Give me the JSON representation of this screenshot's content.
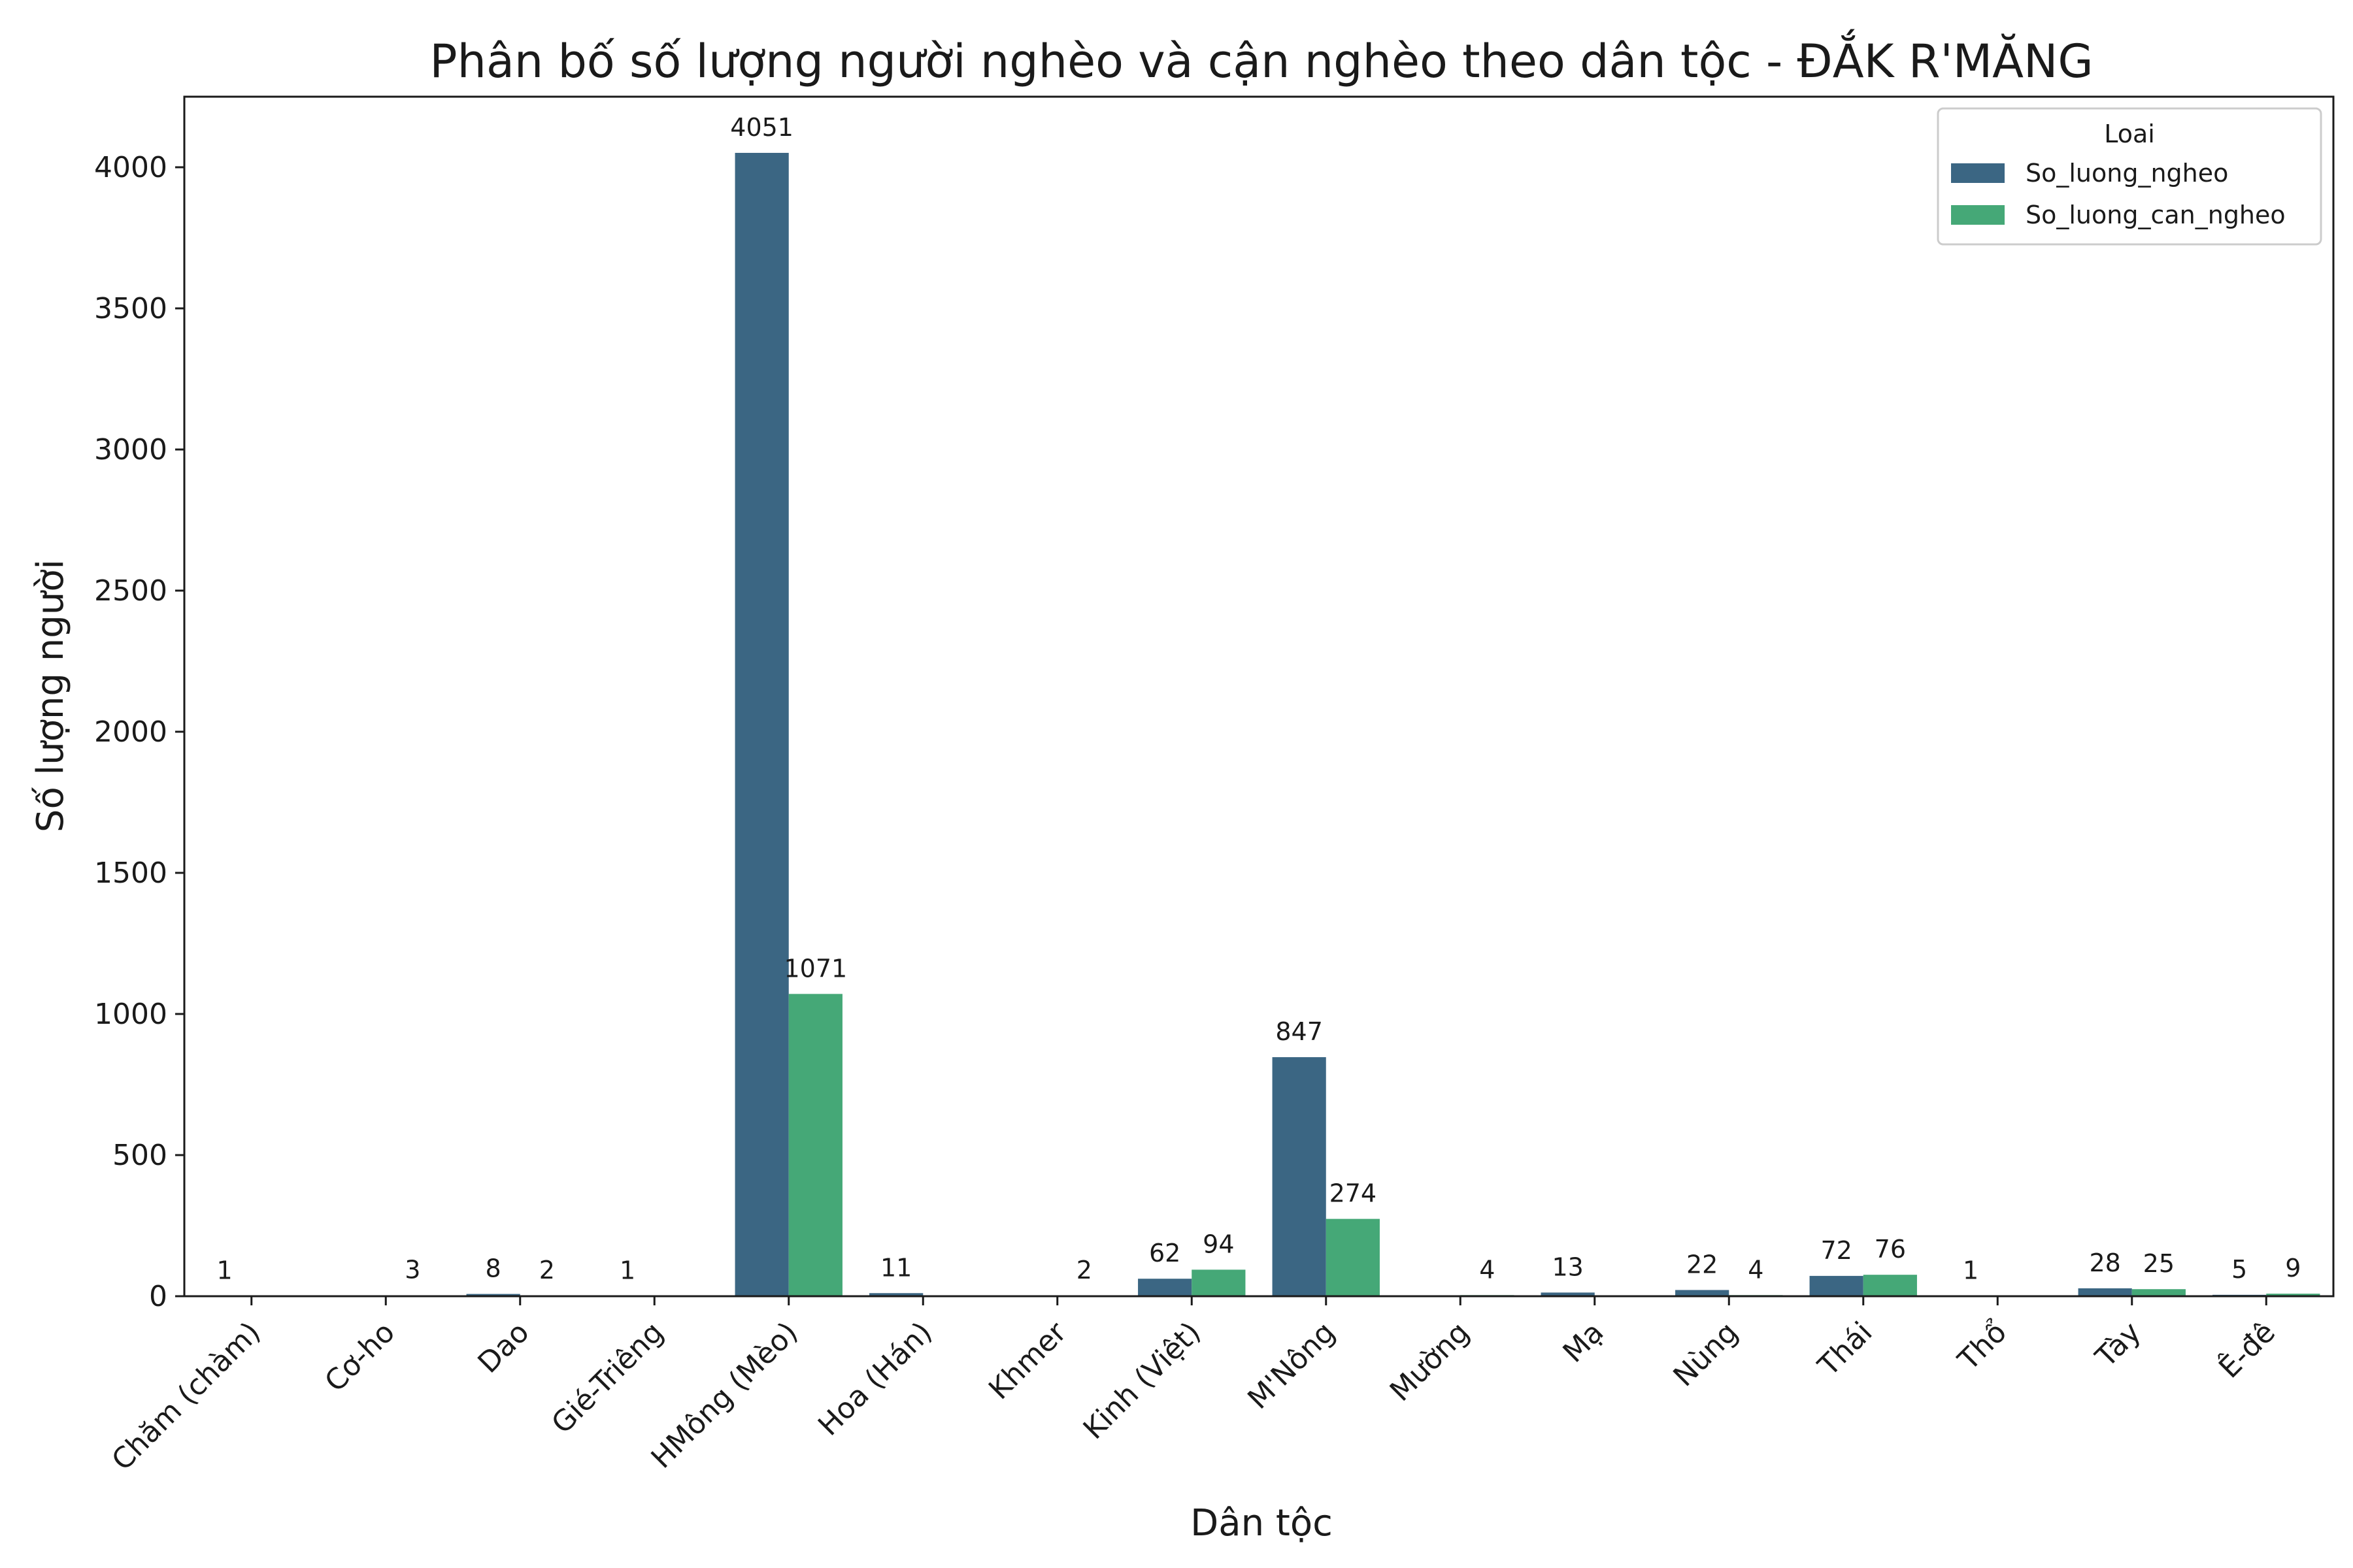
{
  "chart_data": {
    "type": "bar",
    "title": "Phân bố số lượng người nghèo và cận nghèo theo dân tộc - ĐẮK R'MĂNG",
    "xlabel": "Dân tộc",
    "ylabel": "Số lượng người",
    "ylim": [
      0,
      4250
    ],
    "yticks": [
      0,
      500,
      1000,
      1500,
      2000,
      2500,
      3000,
      3500,
      4000
    ],
    "grid": false,
    "legend": {
      "title": "Loai",
      "placement": "top-right"
    },
    "categories": [
      "Chăm (chàm)",
      "Cơ-ho",
      "Dao",
      "Gié-Triêng",
      "HMông (Mèo)",
      "Hoa (Hán)",
      "Khmer",
      "Kinh (Việt)",
      "M'Nông",
      "Mường",
      "Mạ",
      "Nùng",
      "Thái",
      "Thổ",
      "Tày",
      "Ê-đê"
    ],
    "series": [
      {
        "name": "So_luong_ngheo",
        "color": "#3b6683",
        "values": [
          1,
          null,
          8,
          1,
          4051,
          11,
          null,
          62,
          847,
          null,
          13,
          22,
          72,
          1,
          28,
          5
        ]
      },
      {
        "name": "So_luong_can_ngheo",
        "color": "#45a877",
        "values": [
          null,
          3,
          2,
          null,
          1071,
          null,
          2,
          94,
          274,
          4,
          null,
          4,
          76,
          null,
          25,
          9
        ]
      }
    ]
  }
}
